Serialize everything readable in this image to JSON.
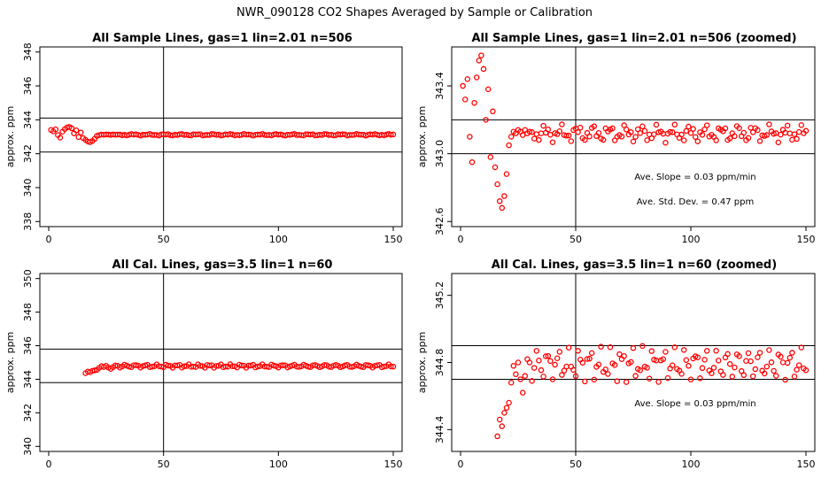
{
  "figure": {
    "suptitle": "NWR_090128  CO2 Shapes Averaged by Sample or Calibration"
  },
  "chart_data": [
    {
      "type": "scatter",
      "title": "All Sample Lines, gas=1 lin=2.01 n=506",
      "ylabel": "approx. ppm",
      "xlabel": "",
      "xlim": [
        0,
        150
      ],
      "ylim": [
        338,
        348
      ],
      "xticks": [
        "0",
        "50",
        "100",
        "150"
      ],
      "yticks": [
        "338",
        "340",
        "342",
        "344",
        "346",
        "348"
      ],
      "vline": 50,
      "hlines": [
        342.1,
        344.1
      ],
      "color": "#ff0000",
      "series": [
        {
          "kind": "sample"
        }
      ],
      "annotations": []
    },
    {
      "type": "scatter",
      "title": "All Sample Lines, gas=1 lin=2.01 n=506 (zoomed)",
      "ylabel": "approx. ppm",
      "xlabel": "",
      "xlim": [
        0,
        150
      ],
      "ylim": [
        342.6,
        343.6
      ],
      "xticks": [
        "0",
        "50",
        "100",
        "150"
      ],
      "yticks": [
        "342.6",
        "343.0",
        "343.4"
      ],
      "vline": 50,
      "hlines": [
        343.0,
        343.2
      ],
      "color": "#ff0000",
      "series": [
        {
          "kind": "sample"
        }
      ],
      "annotations": [
        "Ave. Slope =  0.03  ppm/min",
        "Ave. Std. Dev. =  0.47  ppm"
      ]
    },
    {
      "type": "scatter",
      "title": "All Cal. Lines, gas=3.5 lin=1 n=60",
      "ylabel": "approx. ppm",
      "xlabel": "",
      "xlim": [
        0,
        150
      ],
      "ylim": [
        340,
        350
      ],
      "xticks": [
        "0",
        "50",
        "100",
        "150"
      ],
      "yticks": [
        "340",
        "342",
        "344",
        "346",
        "348",
        "350"
      ],
      "vline": 50,
      "hlines": [
        343.8,
        345.8
      ],
      "color": "#ff0000",
      "series": [
        {
          "kind": "cal"
        }
      ],
      "annotations": []
    },
    {
      "type": "scatter",
      "title": "All Cal. Lines, gas=3.5 lin=1 n=60 (zoomed)",
      "ylabel": "approx. ppm",
      "xlabel": "",
      "xlim": [
        0,
        150
      ],
      "ylim": [
        344.3,
        345.3
      ],
      "xticks": [
        "0",
        "50",
        "100",
        "150"
      ],
      "yticks": [
        "344.4",
        "344.8",
        "345.2"
      ],
      "vline": 50,
      "hlines": [
        344.7,
        344.9
      ],
      "color": "#ff0000",
      "series": [
        {
          "kind": "cal"
        }
      ],
      "annotations": [
        "Ave. Slope =  0.03  ppm/min"
      ]
    }
  ]
}
